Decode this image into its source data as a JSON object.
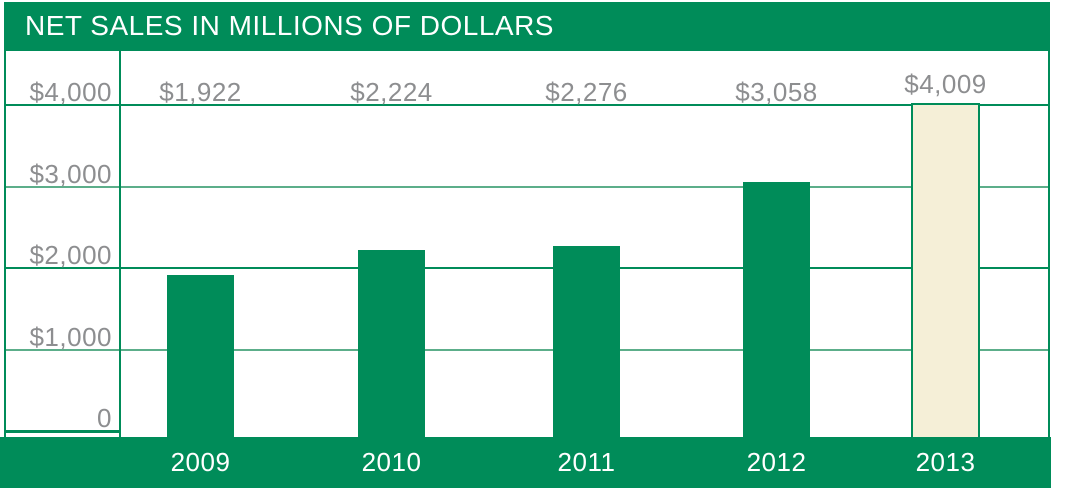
{
  "title": "NET SALES IN MILLIONS OF DOLLARS",
  "colors": {
    "green": "#008c59",
    "light_green": "#5cae8a",
    "cream": "#f5efd7",
    "label_gray": "#8d8e90",
    "white": "#ffffff"
  },
  "chart_data": {
    "type": "bar",
    "title": "NET SALES IN MILLIONS OF DOLLARS",
    "unit": "millions of dollars",
    "categories": [
      "2009",
      "2010",
      "2011",
      "2012",
      "2013"
    ],
    "values": [
      1922,
      2224,
      2276,
      3058,
      4009
    ],
    "value_labels": [
      "$1,922",
      "$2,224",
      "$2,276",
      "$3,058",
      "$4,009"
    ],
    "highlighted_category": "2013",
    "bar_color": "#008c59",
    "highlight_bar_color": "#f5efd7",
    "y_axis": {
      "ticks": [
        0,
        1000,
        2000,
        3000,
        4000
      ],
      "tick_labels": [
        "0",
        "$1,000",
        "$2,000",
        "$3,000",
        "$4,000"
      ],
      "range": [
        0,
        4670
      ]
    },
    "grid": true,
    "legend": false
  }
}
